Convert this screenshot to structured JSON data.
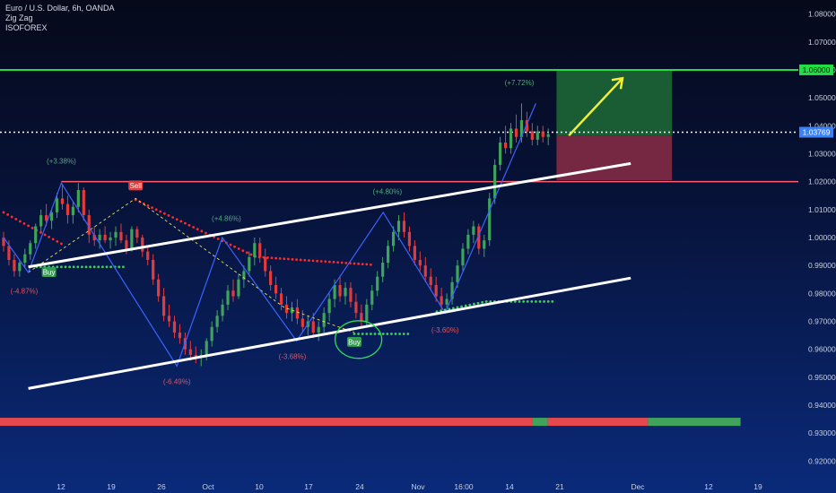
{
  "legend": {
    "symbol": "Euro / U.S. Dollar, 6h, OANDA",
    "indicator1": "Zig Zag",
    "indicator2": "ISOFOREX"
  },
  "colors": {
    "bull": "#3fa35c",
    "bear": "#e23b3b",
    "zigzag": "#3b63ff",
    "trend": "#ffffff",
    "target": "#22dd44",
    "resistance": "#ff5f6d",
    "arrow": "#f0f03a",
    "sar_red": "#ff2a2a",
    "sar_green": "#3fcf5a"
  },
  "chart_data": {
    "type": "candlestick",
    "y_axis": {
      "range": [
        0.915,
        1.085
      ],
      "ticks": [
        "1.08000",
        "1.07000",
        "1.06000",
        "1.05000",
        "1.04000",
        "1.03000",
        "1.02000",
        "1.01000",
        "1.00000",
        "0.99000",
        "0.98000",
        "0.97000",
        "0.96000",
        "0.95000",
        "0.94000",
        "0.93000",
        "0.92000"
      ]
    },
    "x_axis": {
      "ticks": [
        "12",
        "19",
        "26",
        "Oct",
        "10",
        "17",
        "24",
        "Nov",
        "16:00",
        "14",
        "21",
        "Dec",
        "12",
        "19"
      ]
    },
    "levels": {
      "target": "1.06000",
      "current": "1.03769",
      "resistance": "1.02000"
    },
    "zigzag_pct": [
      {
        "label": "(-4.87%)",
        "type": "down"
      },
      {
        "label": "(+3.38%)",
        "type": "up"
      },
      {
        "label": "(-6.49%)",
        "type": "down"
      },
      {
        "label": "(+4.86%)",
        "type": "up"
      },
      {
        "label": "(-3.68%)",
        "type": "down"
      },
      {
        "label": "(+4.80%)",
        "type": "up"
      },
      {
        "label": "(-3.60%)",
        "type": "down"
      },
      {
        "label": "(+7.72%)",
        "type": "up"
      }
    ],
    "signals": {
      "buy1": "Buy",
      "sell": "Sell",
      "buy2": "Buy"
    },
    "zigzag_points": [
      {
        "x": 0,
        "y": 1.0
      },
      {
        "x": 6,
        "y": 0.9875
      },
      {
        "x": 14,
        "y": 1.0195
      },
      {
        "x": 42,
        "y": 0.954
      },
      {
        "x": 53,
        "y": 1.0
      },
      {
        "x": 71,
        "y": 0.963
      },
      {
        "x": 92,
        "y": 1.009
      },
      {
        "x": 107,
        "y": 0.973
      },
      {
        "x": 129,
        "y": 1.048
      }
    ],
    "dashed_points": [
      {
        "x": 6,
        "y": 0.9875
      },
      {
        "x": 32,
        "y": 1.014
      },
      {
        "x": 68,
        "y": 0.975
      },
      {
        "x": 85,
        "y": 0.966
      }
    ],
    "trend_upper": [
      {
        "x": 6,
        "y": 0.9895
      },
      {
        "x": 152,
        "y": 1.0265
      }
    ],
    "trend_lower": [
      {
        "x": 6,
        "y": 0.946
      },
      {
        "x": 152,
        "y": 0.9855
      }
    ],
    "projection": {
      "x_start": 134,
      "x_end": 162,
      "entry": 1.0365,
      "target": 1.06,
      "stop": 1.0205
    },
    "arrow": {
      "x1": 137,
      "y1": 1.0365,
      "x2": 150,
      "y2": 1.057
    },
    "ohlc": [
      [
        1.0,
        1.002,
        0.995,
        0.997
      ],
      [
        0.997,
        0.999,
        0.99,
        0.992
      ],
      [
        0.992,
        0.994,
        0.986,
        0.988
      ],
      [
        0.988,
        0.992,
        0.986,
        0.991
      ],
      [
        0.991,
        0.996,
        0.989,
        0.994
      ],
      [
        0.994,
        0.999,
        0.992,
        0.998
      ],
      [
        0.998,
        1.005,
        0.996,
        1.004
      ],
      [
        1.004,
        1.01,
        1.002,
        1.008
      ],
      [
        1.008,
        1.012,
        1.004,
        1.006
      ],
      [
        1.006,
        1.01,
        1.003,
        1.009
      ],
      [
        1.009,
        1.016,
        1.007,
        1.014
      ],
      [
        1.014,
        1.019,
        1.01,
        1.012
      ],
      [
        1.012,
        1.015,
        1.005,
        1.008
      ],
      [
        1.008,
        1.013,
        1.005,
        1.011
      ],
      [
        1.011,
        1.0195,
        1.009,
        1.017
      ],
      [
        1.017,
        1.018,
        1.006,
        1.008
      ],
      [
        1.008,
        1.01,
        0.998,
        1.001
      ],
      [
        1.001,
        1.004,
        0.997,
        0.999
      ],
      [
        0.999,
        1.003,
        0.996,
        1.001
      ],
      [
        1.001,
        1.004,
        0.998,
        0.999
      ],
      [
        0.999,
        1.002,
        0.996,
        1.0
      ],
      [
        1.0,
        1.004,
        0.997,
        1.002
      ],
      [
        1.002,
        1.005,
        0.998,
        0.999
      ],
      [
        0.999,
        1.001,
        0.994,
        0.996
      ],
      [
        0.996,
        1.004,
        0.995,
        1.003
      ],
      [
        1.003,
        1.004,
        0.998,
        1.0
      ],
      [
        1.0,
        1.001,
        0.993,
        0.995
      ],
      [
        0.995,
        0.997,
        0.99,
        0.992
      ],
      [
        0.992,
        0.994,
        0.983,
        0.985
      ],
      [
        0.985,
        0.987,
        0.977,
        0.979
      ],
      [
        0.979,
        0.982,
        0.97,
        0.972
      ],
      [
        0.972,
        0.976,
        0.968,
        0.97
      ],
      [
        0.97,
        0.972,
        0.964,
        0.966
      ],
      [
        0.966,
        0.969,
        0.962,
        0.964
      ],
      [
        0.964,
        0.966,
        0.958,
        0.96
      ],
      [
        0.96,
        0.963,
        0.956,
        0.958
      ],
      [
        0.958,
        0.961,
        0.955,
        0.957
      ],
      [
        0.957,
        0.96,
        0.954,
        0.958
      ],
      [
        0.958,
        0.964,
        0.956,
        0.963
      ],
      [
        0.963,
        0.97,
        0.961,
        0.968
      ],
      [
        0.968,
        0.974,
        0.966,
        0.972
      ],
      [
        0.972,
        0.978,
        0.97,
        0.976
      ],
      [
        0.976,
        0.983,
        0.974,
        0.981
      ],
      [
        0.981,
        0.985,
        0.977,
        0.979
      ],
      [
        0.979,
        0.987,
        0.978,
        0.985
      ],
      [
        0.985,
        0.99,
        0.982,
        0.988
      ],
      [
        0.988,
        0.995,
        0.986,
        0.993
      ],
      [
        0.993,
        1.0,
        0.99,
        0.998
      ],
      [
        0.998,
        1.0,
        0.991,
        0.993
      ],
      [
        0.993,
        0.996,
        0.986,
        0.988
      ],
      [
        0.988,
        0.99,
        0.981,
        0.983
      ],
      [
        0.983,
        0.986,
        0.978,
        0.98
      ],
      [
        0.98,
        0.982,
        0.974,
        0.976
      ],
      [
        0.976,
        0.979,
        0.971,
        0.973
      ],
      [
        0.973,
        0.977,
        0.97,
        0.975
      ],
      [
        0.975,
        0.978,
        0.969,
        0.971
      ],
      [
        0.971,
        0.974,
        0.966,
        0.968
      ],
      [
        0.968,
        0.972,
        0.965,
        0.97
      ],
      [
        0.97,
        0.973,
        0.964,
        0.966
      ],
      [
        0.966,
        0.97,
        0.963,
        0.968
      ],
      [
        0.968,
        0.975,
        0.966,
        0.973
      ],
      [
        0.973,
        0.98,
        0.97,
        0.978
      ],
      [
        0.978,
        0.985,
        0.975,
        0.983
      ],
      [
        0.983,
        0.986,
        0.977,
        0.979
      ],
      [
        0.979,
        0.984,
        0.976,
        0.982
      ],
      [
        0.982,
        0.984,
        0.975,
        0.977
      ],
      [
        0.977,
        0.98,
        0.971,
        0.973
      ],
      [
        0.973,
        0.976,
        0.968,
        0.97
      ],
      [
        0.97,
        0.978,
        0.968,
        0.976
      ],
      [
        0.976,
        0.983,
        0.974,
        0.981
      ],
      [
        0.981,
        0.988,
        0.979,
        0.986
      ],
      [
        0.986,
        0.993,
        0.984,
        0.991
      ],
      [
        0.991,
        0.999,
        0.989,
        0.997
      ],
      [
        0.997,
        1.004,
        0.995,
        1.002
      ],
      [
        1.002,
        1.008,
        0.999,
        1.006
      ],
      [
        1.006,
        1.009,
        1.0,
        1.002
      ],
      [
        1.002,
        1.004,
        0.995,
        0.997
      ],
      [
        0.997,
        0.999,
        0.99,
        0.992
      ],
      [
        0.992,
        0.995,
        0.988,
        0.99
      ],
      [
        0.99,
        0.993,
        0.984,
        0.986
      ],
      [
        0.986,
        0.989,
        0.981,
        0.983
      ],
      [
        0.983,
        0.986,
        0.977,
        0.979
      ],
      [
        0.979,
        0.982,
        0.974,
        0.976
      ],
      [
        0.976,
        0.98,
        0.973,
        0.978
      ],
      [
        0.978,
        0.986,
        0.976,
        0.984
      ],
      [
        0.984,
        0.992,
        0.982,
        0.99
      ],
      [
        0.99,
        0.998,
        0.988,
        0.996
      ],
      [
        0.996,
        1.003,
        0.994,
        1.001
      ],
      [
        1.001,
        1.006,
        0.998,
        1.004
      ],
      [
        1.004,
        1.005,
        0.994,
        0.996
      ],
      [
        0.996,
        1.001,
        0.993,
        0.999
      ],
      [
        0.999,
        1.016,
        0.997,
        1.014
      ],
      [
        1.014,
        1.028,
        1.012,
        1.026
      ],
      [
        1.026,
        1.036,
        1.024,
        1.034
      ],
      [
        1.034,
        1.04,
        1.03,
        1.032
      ],
      [
        1.032,
        1.041,
        1.03,
        1.039
      ],
      [
        1.039,
        1.044,
        1.034,
        1.036
      ],
      [
        1.036,
        1.048,
        1.034,
        1.042
      ],
      [
        1.042,
        1.045,
        1.036,
        1.038
      ],
      [
        1.038,
        1.041,
        1.033,
        1.035
      ],
      [
        1.035,
        1.04,
        1.033,
        1.038
      ],
      [
        1.038,
        1.04,
        1.034,
        1.036
      ],
      [
        1.036,
        1.039,
        1.033,
        1.037
      ]
    ],
    "strip": {
      "red_end": 0.69,
      "green_start": 0.69,
      "green_end": 0.71,
      "red2_end": 0.84
    }
  }
}
